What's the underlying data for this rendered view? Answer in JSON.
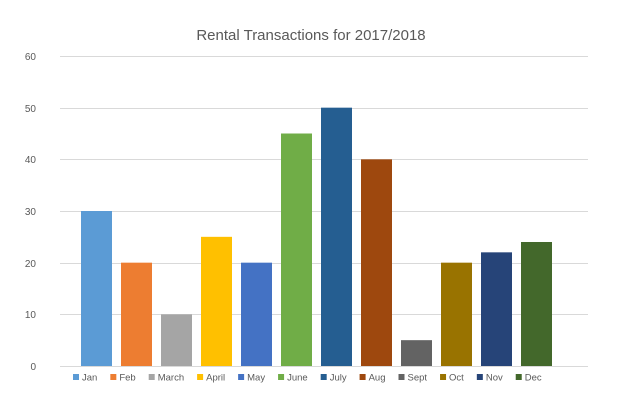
{
  "chart_data": {
    "type": "bar",
    "title": "Rental Transactions for 2017/2018",
    "xlabel": "",
    "ylabel": "",
    "ylim": [
      0,
      60
    ],
    "yticks": [
      0,
      10,
      20,
      30,
      40,
      50,
      60
    ],
    "grid": true,
    "legend_position": "bottom",
    "categories": [
      "Jan",
      "Feb",
      "March",
      "April",
      "May",
      "June",
      "July",
      "Aug",
      "Sept",
      "Oct",
      "Nov",
      "Dec"
    ],
    "values": [
      30,
      20,
      10,
      25,
      20,
      45,
      50,
      40,
      5,
      20,
      22,
      24
    ],
    "colors": [
      "#5b9bd5",
      "#ed7d31",
      "#a5a5a5",
      "#ffc000",
      "#4472c4",
      "#70ad47",
      "#255e91",
      "#9e480e",
      "#636363",
      "#997300",
      "#264478",
      "#43682b"
    ]
  }
}
